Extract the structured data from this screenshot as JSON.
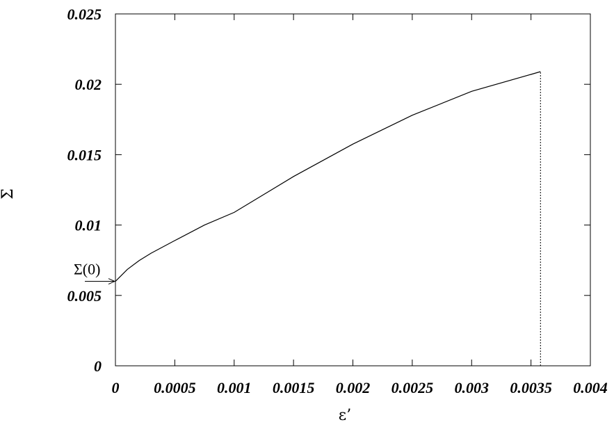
{
  "chart_data": {
    "type": "line",
    "title": "",
    "xlabel": "ε’",
    "ylabel": "Σ",
    "xlim": [
      0,
      0.004
    ],
    "ylim": [
      0,
      0.025
    ],
    "x_ticks": [
      "0",
      "0.0005",
      "0.001",
      "0.0015",
      "0.002",
      "0.0025",
      "0.003",
      "0.0035",
      "0.004"
    ],
    "y_ticks": [
      "0",
      "0.005",
      "0.01",
      "0.015",
      "0.02",
      "0.025"
    ],
    "grid": false,
    "series": [
      {
        "style": "solid",
        "x": [
          0,
          0.0001,
          0.0002,
          0.0003,
          0.0005,
          0.00075,
          0.001,
          0.0015,
          0.002,
          0.0025,
          0.003,
          0.0035,
          0.00358
        ],
        "y": [
          0.006,
          0.00685,
          0.00748,
          0.008,
          0.0089,
          0.01,
          0.0109,
          0.01345,
          0.01575,
          0.0178,
          0.0195,
          0.0207,
          0.0209
        ]
      }
    ],
    "vertical_line": {
      "x": 0.00358,
      "y_from": 0,
      "y_to": 0.0209,
      "style": "dotted"
    },
    "annotations": [
      {
        "text": "Σ(0)",
        "arrow_to": {
          "x": 0,
          "y": 0.006
        }
      }
    ]
  }
}
